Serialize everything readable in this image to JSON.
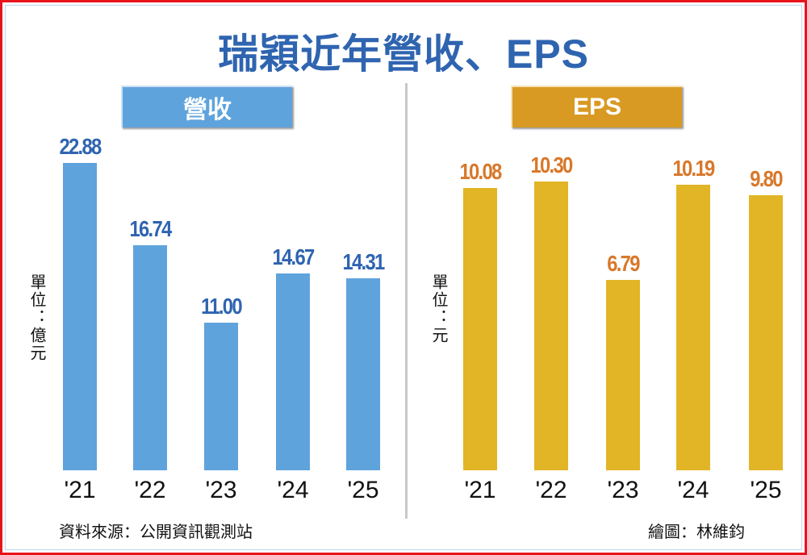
{
  "chart_data": [
    {
      "type": "bar",
      "title": "瑞穎近年營收、EPS",
      "panel_title": "營收",
      "unit_label": "單位：億元",
      "categories": [
        "'21",
        "'22",
        "'23",
        "'24",
        "'25"
      ],
      "values": [
        22.88,
        16.74,
        11.0,
        14.67,
        14.31
      ],
      "value_labels": [
        "22.88",
        "16.74",
        "11.00",
        "14.67",
        "14.31"
      ],
      "ylim": [
        0,
        22.88
      ],
      "color": "#5fa3dc",
      "label_color": "#2f64b0"
    },
    {
      "type": "bar",
      "panel_title": "EPS",
      "unit_label": "單位：元",
      "categories": [
        "'21",
        "'22",
        "'23",
        "'24",
        "'25"
      ],
      "values": [
        10.08,
        10.3,
        6.79,
        10.19,
        9.8
      ],
      "value_labels": [
        "10.08",
        "10.30",
        "6.79",
        "10.19",
        "9.80"
      ],
      "ylim": [
        0,
        10.3
      ],
      "color": "#e2b526",
      "label_color": "#d8782a"
    }
  ],
  "title": "瑞穎近年營收、EPS",
  "source": "資料來源：公開資訊觀測站",
  "credit": "繪圖：林維鈞"
}
